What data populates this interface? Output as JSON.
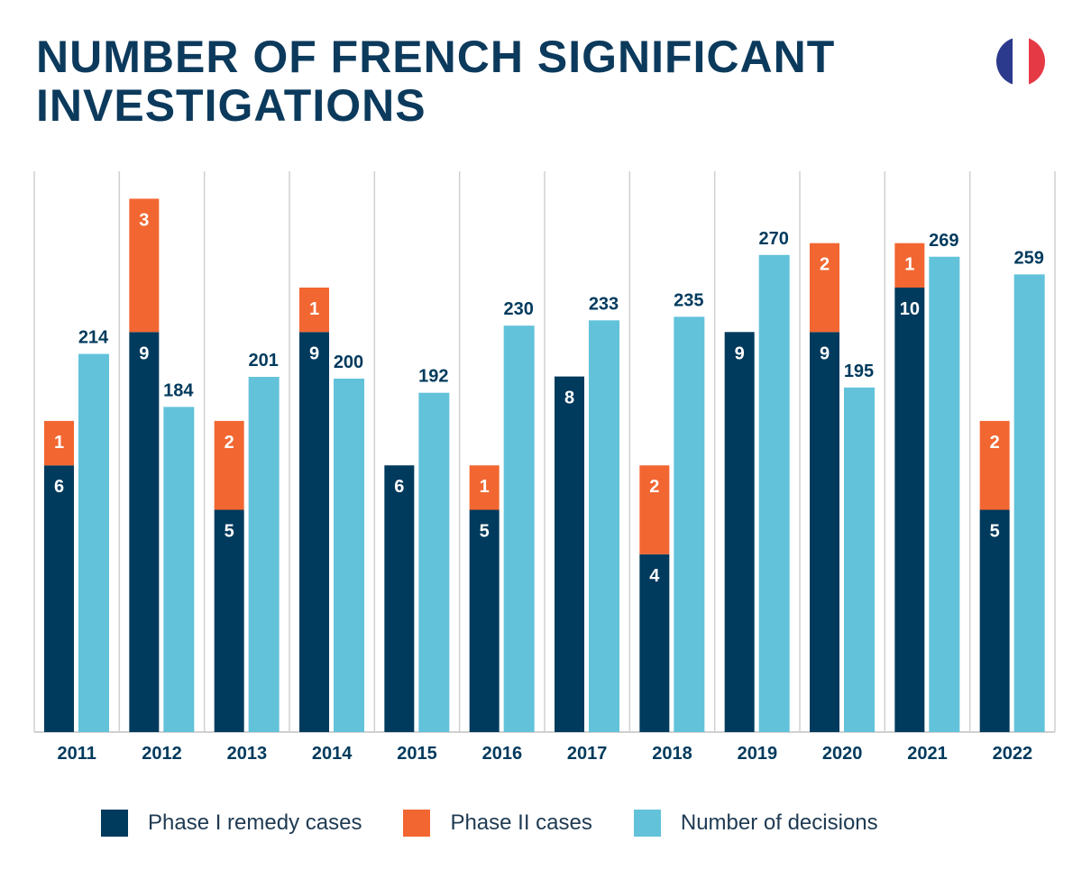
{
  "title_line1": "NUMBER OF FRENCH SIGNIFICANT",
  "title_line2": "INVESTIGATIONS",
  "colors": {
    "phase1": "#003a5d",
    "phase2": "#f26631",
    "decisions": "#62c2da",
    "title": "#0c3a5c",
    "grid": "#d0d0d0",
    "flag_blue": "#2b3a8c",
    "flag_white": "#ffffff",
    "flag_red": "#e63946"
  },
  "icon": "france-flag-icon",
  "chart_data": {
    "type": "bar",
    "categories": [
      "2011",
      "2012",
      "2013",
      "2014",
      "2015",
      "2016",
      "2017",
      "2018",
      "2019",
      "2020",
      "2021",
      "2022"
    ],
    "series": [
      {
        "name": "Phase I remedy cases",
        "values": [
          6,
          9,
          5,
          9,
          6,
          5,
          8,
          4,
          9,
          9,
          10,
          5
        ],
        "stack": "cases",
        "show_labels": [
          true,
          true,
          true,
          true,
          true,
          true,
          true,
          true,
          true,
          true,
          true,
          true
        ]
      },
      {
        "name": "Phase II cases",
        "values": [
          1,
          3,
          2,
          1,
          0,
          1,
          0,
          2,
          0,
          2,
          1,
          2
        ],
        "stack": "cases"
      },
      {
        "name": "Number of decisions",
        "values": [
          214,
          184,
          201,
          200,
          192,
          230,
          233,
          235,
          270,
          195,
          269,
          259
        ],
        "stack": "decisions"
      }
    ],
    "legend_position": "bottom",
    "grid": "vertical separators",
    "cases_ylim": [
      0,
      12.6
    ],
    "decisions_ylim": [
      0,
      380
    ]
  }
}
